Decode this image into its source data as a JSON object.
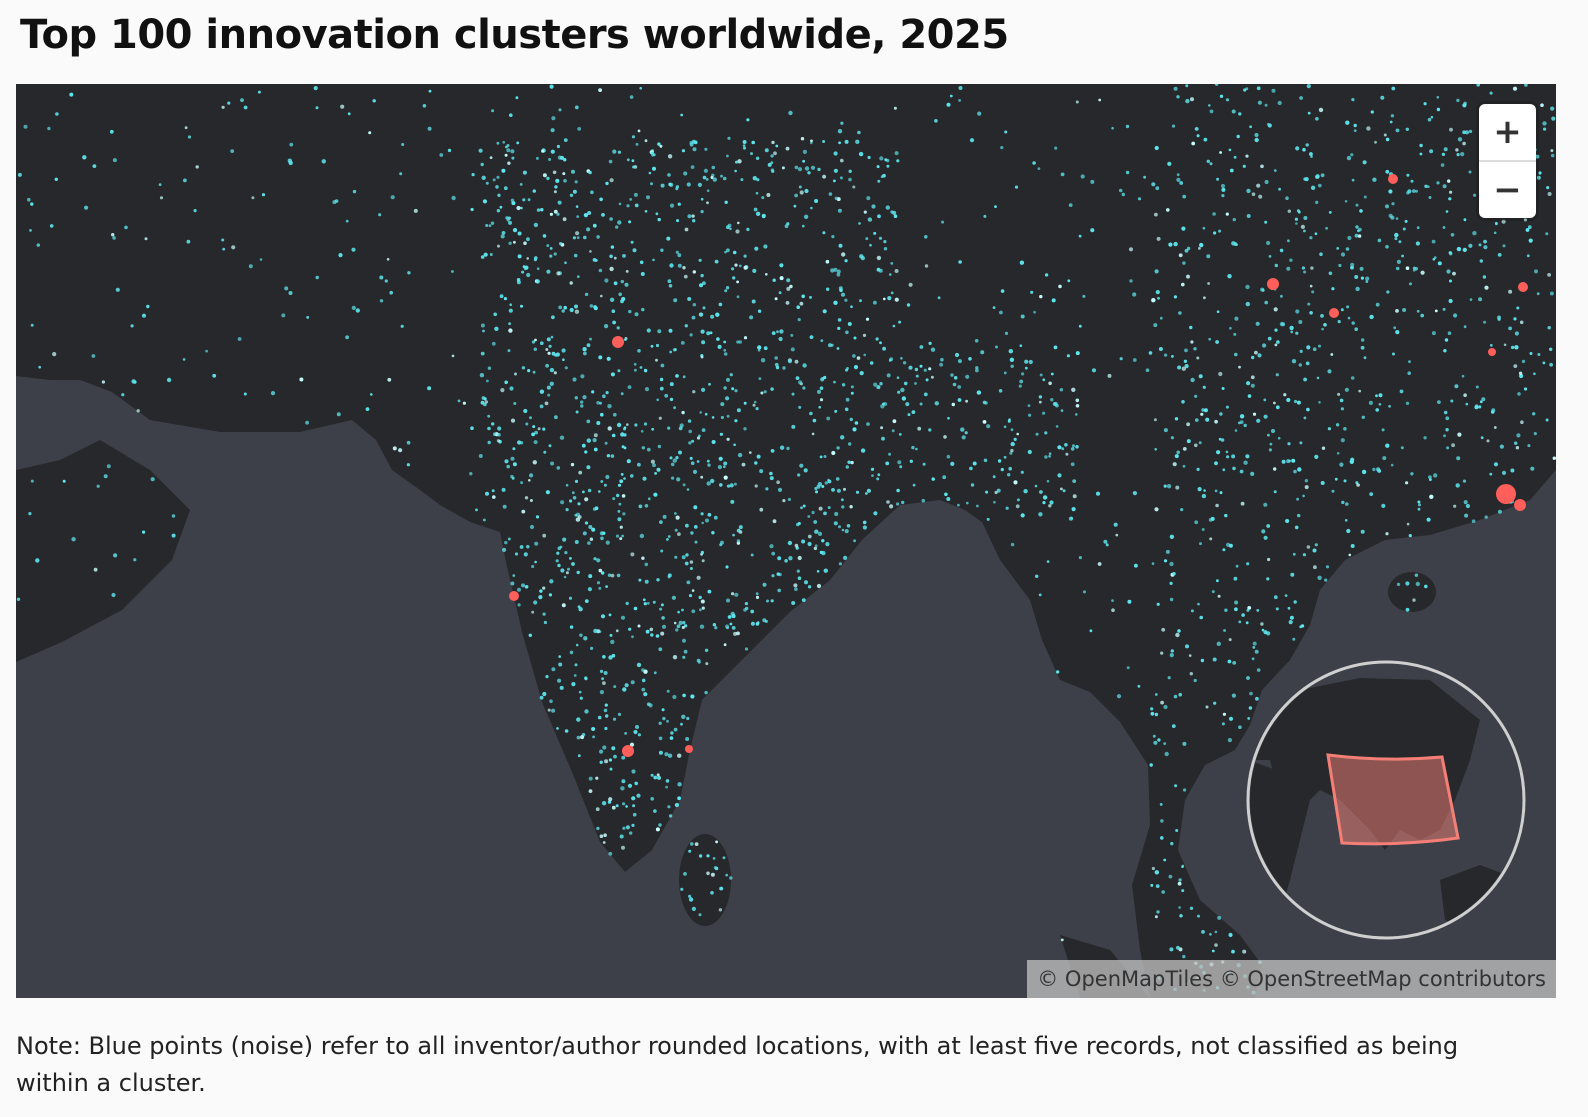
{
  "title": "Top 100 innovation clusters worldwide, 2025",
  "map": {
    "zoom_in_label": "+",
    "zoom_out_label": "−",
    "attribution": "© OpenMapTiles © OpenStreetMap contributors",
    "legend_note": "Note: Blue points (noise) refer to all inventor/author rounded locations, with at least five records, not classified as being within a cluster.",
    "colors": {
      "land": "#27282b",
      "water": "#3d4048",
      "noise_points": "#5ee8f0",
      "cluster_points": "#ff5f5a",
      "inset_extent": "#f57f77"
    },
    "inset": {
      "type": "globe-overview",
      "highlight": "current-view-extent"
    }
  }
}
